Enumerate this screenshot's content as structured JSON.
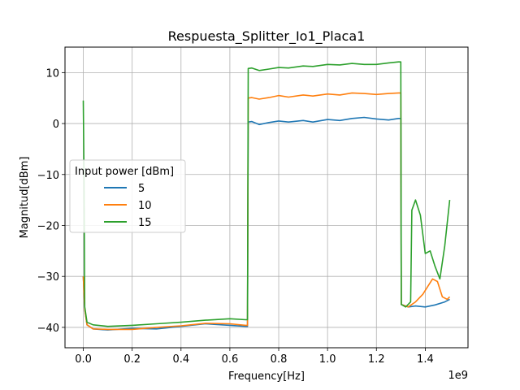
{
  "chart_data": {
    "type": "line",
    "title": "Respuesta_Splitter_Io1_Placa1",
    "xlabel": "Frequency[Hz]",
    "ylabel": "Magnitud[dBm]",
    "x_offset_label": "1e9",
    "xlim": [
      -0.075,
      1.575
    ],
    "ylim": [
      -44,
      15
    ],
    "x_ticks": [
      0.0,
      0.2,
      0.4,
      0.6,
      0.8,
      1.0,
      1.2,
      1.4
    ],
    "x_tick_labels": [
      "0.0",
      "0.2",
      "0.4",
      "0.6",
      "0.8",
      "1.0",
      "1.2",
      "1.4"
    ],
    "y_ticks": [
      -40,
      -30,
      -20,
      -10,
      0,
      10
    ],
    "y_tick_labels": [
      "−40",
      "−30",
      "−20",
      "−10",
      "0",
      "10"
    ],
    "grid": true,
    "legend": {
      "title": "Input power [dBm]",
      "placement": "center-left"
    },
    "series": [
      {
        "name": "5",
        "color": "#1f77b4",
        "points": [
          [
            0.0,
            -30
          ],
          [
            0.006,
            -36.5
          ],
          [
            0.015,
            -39.5
          ],
          [
            0.04,
            -40.3
          ],
          [
            0.1,
            -40.5
          ],
          [
            0.2,
            -40.2
          ],
          [
            0.3,
            -40.3
          ],
          [
            0.4,
            -39.8
          ],
          [
            0.5,
            -39.3
          ],
          [
            0.6,
            -39.6
          ],
          [
            0.665,
            -39.8
          ],
          [
            0.672,
            -39.8
          ],
          [
            0.675,
            0.3
          ],
          [
            0.69,
            0.4
          ],
          [
            0.72,
            -0.2
          ],
          [
            0.76,
            0.2
          ],
          [
            0.8,
            0.5
          ],
          [
            0.84,
            0.3
          ],
          [
            0.9,
            0.6
          ],
          [
            0.94,
            0.3
          ],
          [
            1.0,
            0.8
          ],
          [
            1.05,
            0.6
          ],
          [
            1.1,
            1.0
          ],
          [
            1.15,
            1.2
          ],
          [
            1.2,
            0.9
          ],
          [
            1.25,
            0.7
          ],
          [
            1.29,
            1.0
          ],
          [
            1.3,
            1.0
          ],
          [
            1.302,
            -35.5
          ],
          [
            1.33,
            -36.0
          ],
          [
            1.36,
            -35.8
          ],
          [
            1.4,
            -36.0
          ],
          [
            1.44,
            -35.6
          ],
          [
            1.48,
            -35.0
          ],
          [
            1.5,
            -34.5
          ]
        ]
      },
      {
        "name": "10",
        "color": "#ff7f0e",
        "points": [
          [
            0.0,
            -30
          ],
          [
            0.006,
            -36.5
          ],
          [
            0.015,
            -39.5
          ],
          [
            0.04,
            -40.3
          ],
          [
            0.1,
            -40.4
          ],
          [
            0.2,
            -40.4
          ],
          [
            0.3,
            -40.0
          ],
          [
            0.4,
            -39.7
          ],
          [
            0.5,
            -39.2
          ],
          [
            0.6,
            -39.3
          ],
          [
            0.665,
            -39.6
          ],
          [
            0.672,
            -39.6
          ],
          [
            0.675,
            5.0
          ],
          [
            0.69,
            5.1
          ],
          [
            0.72,
            4.8
          ],
          [
            0.76,
            5.1
          ],
          [
            0.8,
            5.5
          ],
          [
            0.84,
            5.2
          ],
          [
            0.9,
            5.6
          ],
          [
            0.94,
            5.4
          ],
          [
            1.0,
            5.8
          ],
          [
            1.05,
            5.6
          ],
          [
            1.1,
            6.0
          ],
          [
            1.15,
            5.9
          ],
          [
            1.2,
            5.7
          ],
          [
            1.25,
            5.9
          ],
          [
            1.29,
            6.0
          ],
          [
            1.3,
            6.0
          ],
          [
            1.302,
            -35.5
          ],
          [
            1.33,
            -36.0
          ],
          [
            1.36,
            -35.0
          ],
          [
            1.39,
            -33.5
          ],
          [
            1.41,
            -32.0
          ],
          [
            1.43,
            -30.5
          ],
          [
            1.45,
            -31.0
          ],
          [
            1.47,
            -34.0
          ],
          [
            1.49,
            -34.5
          ],
          [
            1.5,
            -34.0
          ]
        ]
      },
      {
        "name": "15",
        "color": "#2ca02c",
        "points": [
          [
            0.0,
            4.5
          ],
          [
            0.003,
            -10
          ],
          [
            0.006,
            -36.0
          ],
          [
            0.015,
            -39.0
          ],
          [
            0.04,
            -39.5
          ],
          [
            0.1,
            -39.8
          ],
          [
            0.2,
            -39.6
          ],
          [
            0.3,
            -39.3
          ],
          [
            0.4,
            -39.0
          ],
          [
            0.5,
            -38.6
          ],
          [
            0.6,
            -38.3
          ],
          [
            0.665,
            -38.5
          ],
          [
            0.672,
            -38.5
          ],
          [
            0.675,
            10.8
          ],
          [
            0.69,
            10.9
          ],
          [
            0.72,
            10.4
          ],
          [
            0.76,
            10.7
          ],
          [
            0.8,
            11.0
          ],
          [
            0.84,
            10.9
          ],
          [
            0.9,
            11.3
          ],
          [
            0.94,
            11.2
          ],
          [
            1.0,
            11.6
          ],
          [
            1.05,
            11.5
          ],
          [
            1.1,
            11.8
          ],
          [
            1.15,
            11.6
          ],
          [
            1.2,
            11.6
          ],
          [
            1.25,
            11.9
          ],
          [
            1.29,
            12.1
          ],
          [
            1.3,
            12.1
          ],
          [
            1.302,
            -35.5
          ],
          [
            1.32,
            -36.0
          ],
          [
            1.34,
            -35.0
          ],
          [
            1.345,
            -17.0
          ],
          [
            1.36,
            -15.0
          ],
          [
            1.38,
            -18.0
          ],
          [
            1.4,
            -25.5
          ],
          [
            1.42,
            -25.0
          ],
          [
            1.44,
            -28.0
          ],
          [
            1.46,
            -30.5
          ],
          [
            1.48,
            -24.0
          ],
          [
            1.5,
            -15.0
          ]
        ]
      }
    ]
  }
}
